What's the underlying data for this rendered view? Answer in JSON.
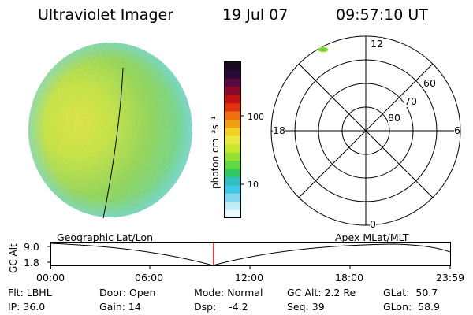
{
  "header": {
    "instrument": "Ultraviolet Imager",
    "date": "19 Jul 07",
    "time": "09:57:10 UT"
  },
  "colorbar": {
    "unit_label": "photon cm⁻²s⁻¹",
    "ticks": [
      "100",
      "10"
    ],
    "colors": [
      "#1a0a22",
      "#2b0a3a",
      "#5a0a40",
      "#8a0a2a",
      "#c01010",
      "#e03010",
      "#f07010",
      "#f0a010",
      "#f0d020",
      "#e8e840",
      "#c8e830",
      "#98e030",
      "#60d840",
      "#30c860",
      "#30c0c0",
      "#40c8e8",
      "#80d8f0",
      "#c0ecf8",
      "#eaf8ff"
    ]
  },
  "polar_grid": {
    "mlt_labels": {
      "top": "12",
      "left": "18",
      "right": "6",
      "bottom": "0"
    },
    "lat_labels": [
      "60",
      "70",
      "80"
    ]
  },
  "timeline": {
    "left_label": "Geographic Lat/Lon",
    "right_label": "Apex MLat/MLT",
    "y_axis_label": "GC Alt",
    "y_ticks": [
      "9.0",
      "1.8"
    ],
    "x_ticks": [
      "00:00",
      "06:00",
      "12:00",
      "18:00",
      "23:59"
    ],
    "cursor_color": "#cc0000"
  },
  "status": {
    "flt": "Flt: LBHL",
    "ip": "IP: 36.0",
    "door": "Door: Open",
    "gain": "Gain: 14",
    "mode": "Mode: Normal",
    "dsp": "Dsp:    -4.2",
    "gc_alt": "GC Alt: 2.2 Re",
    "seq": "Seq: 39",
    "glat": "GLat:  50.7",
    "glon": "GLon:  58.9"
  }
}
